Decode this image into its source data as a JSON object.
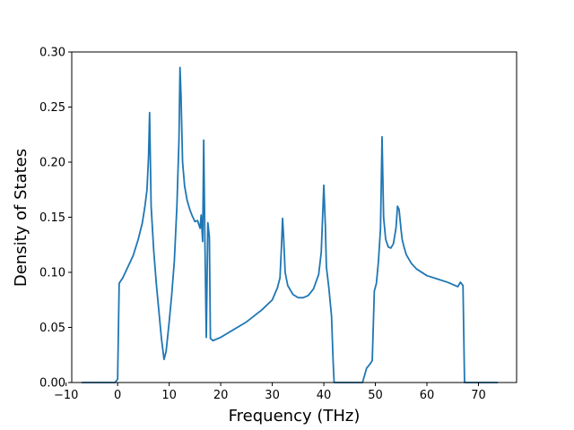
{
  "chart_data": {
    "type": "line",
    "title": "",
    "xlabel": "Frequency (THz)",
    "ylabel": "Density of States",
    "xlim": [
      -8.9,
      77.4
    ],
    "ylim": [
      0.0,
      0.3
    ],
    "xticks": [
      -10,
      0,
      10,
      20,
      30,
      40,
      50,
      60,
      70
    ],
    "xtick_labels": [
      "−10",
      "0",
      "10",
      "20",
      "30",
      "40",
      "50",
      "60",
      "70"
    ],
    "yticks": [
      0.0,
      0.05,
      0.1,
      0.15,
      0.2,
      0.25,
      0.3
    ],
    "ytick_labels": [
      "0.00",
      "0.05",
      "0.10",
      "0.15",
      "0.20",
      "0.25",
      "0.30"
    ],
    "grid": false,
    "legend": "none",
    "series": [
      {
        "color": "#1f77b4",
        "x": [
          -6.9,
          -0.5,
          0.0,
          0.3,
          1.0,
          2.0,
          3.0,
          4.0,
          4.8,
          5.3,
          5.7,
          6.0,
          6.2,
          6.5,
          7.0,
          7.5,
          8.0,
          8.5,
          9.0,
          9.4,
          10.0,
          10.5,
          11.0,
          11.5,
          11.9,
          12.1,
          12.3,
          12.6,
          13.0,
          13.5,
          14.0,
          14.5,
          15.0,
          15.5,
          16.0,
          16.2,
          16.5,
          16.7,
          16.9,
          17.2,
          17.5,
          17.8,
          18.0,
          18.5,
          20.0,
          25.0,
          28.0,
          30.0,
          31.0,
          31.5,
          31.8,
          32.0,
          32.2,
          32.5,
          33.0,
          34.0,
          35.0,
          36.0,
          37.0,
          38.0,
          39.0,
          39.5,
          40.0,
          40.3,
          40.5,
          41.0,
          41.5,
          41.8,
          42.0,
          47.5,
          48.0,
          48.3,
          49.0,
          49.4,
          49.8,
          50.2,
          50.6,
          51.0,
          51.3,
          51.6,
          52.0,
          52.5,
          53.0,
          53.5,
          54.0,
          54.3,
          54.6,
          55.0,
          55.2,
          55.5,
          56.0,
          57.0,
          58.0,
          60.0,
          62.0,
          64.0,
          65.0,
          66.0,
          66.5,
          67.0,
          67.3,
          68.0,
          73.7
        ],
        "y": [
          0.0,
          0.0,
          0.003,
          0.09,
          0.095,
          0.105,
          0.115,
          0.13,
          0.145,
          0.16,
          0.175,
          0.205,
          0.245,
          0.16,
          0.12,
          0.09,
          0.065,
          0.04,
          0.021,
          0.028,
          0.055,
          0.08,
          0.11,
          0.16,
          0.22,
          0.286,
          0.26,
          0.2,
          0.178,
          0.165,
          0.157,
          0.151,
          0.146,
          0.147,
          0.14,
          0.152,
          0.128,
          0.22,
          0.14,
          0.041,
          0.145,
          0.132,
          0.04,
          0.038,
          0.041,
          0.055,
          0.066,
          0.075,
          0.086,
          0.095,
          0.125,
          0.149,
          0.132,
          0.1,
          0.088,
          0.08,
          0.077,
          0.077,
          0.079,
          0.085,
          0.098,
          0.118,
          0.179,
          0.142,
          0.105,
          0.085,
          0.06,
          0.02,
          0.0,
          0.0,
          0.008,
          0.013,
          0.017,
          0.02,
          0.083,
          0.09,
          0.11,
          0.14,
          0.223,
          0.15,
          0.13,
          0.123,
          0.122,
          0.126,
          0.14,
          0.16,
          0.157,
          0.138,
          0.13,
          0.124,
          0.116,
          0.108,
          0.103,
          0.097,
          0.094,
          0.091,
          0.089,
          0.087,
          0.091,
          0.088,
          0.0,
          0.0,
          0.0
        ]
      }
    ]
  }
}
